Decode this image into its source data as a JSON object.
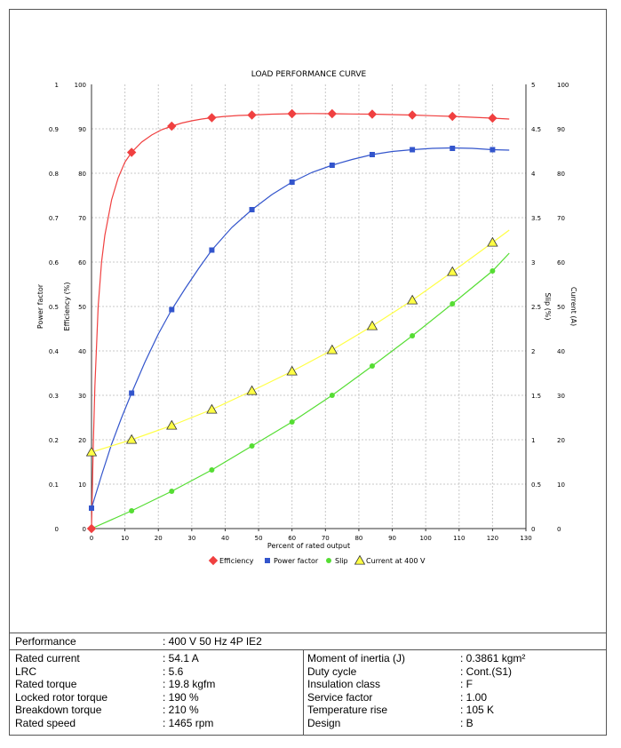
{
  "chart_data": {
    "type": "line",
    "title": "LOAD PERFORMANCE CURVE",
    "xlabel": "Percent of rated output",
    "xlim": [
      0,
      130
    ],
    "x_ticks": [
      "0",
      "10",
      "20",
      "30",
      "40",
      "50",
      "60",
      "70",
      "80",
      "90",
      "100",
      "110",
      "120",
      "130"
    ],
    "grid": true,
    "legend_position": "bottom",
    "axes": {
      "power_factor": {
        "label": "Power factor",
        "ticks": [
          "0",
          "0.1",
          "0.2",
          "0.3",
          "0.4",
          "0.5",
          "0.6",
          "0.7",
          "0.8",
          "0.9",
          "1"
        ],
        "range": [
          0,
          1
        ]
      },
      "efficiency": {
        "label": "Efficiency (%)",
        "ticks": [
          "0",
          "10",
          "20",
          "30",
          "40",
          "50",
          "60",
          "70",
          "80",
          "90",
          "100"
        ],
        "range": [
          0,
          100
        ]
      },
      "slip": {
        "label": "Slip (%)",
        "ticks": [
          "0",
          "0.5",
          "1",
          "1.5",
          "2",
          "2.5",
          "3",
          "3.5",
          "4",
          "4.5",
          "5"
        ],
        "range": [
          0,
          5
        ]
      },
      "current": {
        "label": "Current (A)",
        "ticks": [
          "0",
          "10",
          "20",
          "30",
          "40",
          "50",
          "60",
          "70",
          "80",
          "90",
          "100"
        ],
        "range": [
          0,
          100
        ]
      }
    },
    "series": [
      {
        "name": "Efficiency",
        "axis": "efficiency",
        "color": "#f04040",
        "marker": "diamond",
        "points": {
          "x": [
            0,
            12,
            24,
            36,
            48,
            60,
            72,
            84,
            96,
            108,
            120
          ],
          "y": [
            0,
            84.7,
            90.6,
            92.5,
            93.1,
            93.4,
            93.4,
            93.3,
            93.1,
            92.8,
            92.4
          ]
        },
        "curve": {
          "x": [
            0,
            0.5,
            1,
            2,
            3,
            4,
            6,
            8,
            10,
            12,
            15,
            18,
            21,
            24,
            27,
            30,
            33,
            36,
            40,
            44,
            48,
            54,
            60,
            66,
            72,
            78,
            84,
            90,
            96,
            102,
            108,
            114,
            120,
            125
          ],
          "y": [
            0,
            18,
            32,
            50,
            60,
            66,
            74,
            79,
            82.5,
            84.7,
            87,
            88.6,
            89.8,
            90.6,
            91.3,
            91.8,
            92.2,
            92.5,
            92.8,
            93.0,
            93.1,
            93.3,
            93.4,
            93.45,
            93.4,
            93.35,
            93.3,
            93.2,
            93.1,
            92.95,
            92.8,
            92.6,
            92.4,
            92.2
          ]
        }
      },
      {
        "name": "Power factor",
        "axis": "power_factor",
        "color": "#3355cc",
        "marker": "square",
        "points": {
          "x": [
            0,
            12,
            24,
            36,
            48,
            60,
            72,
            84,
            96,
            108,
            120
          ],
          "y": [
            0.046,
            0.305,
            0.493,
            0.627,
            0.718,
            0.78,
            0.818,
            0.842,
            0.853,
            0.856,
            0.853
          ]
        },
        "curve": {
          "x": [
            0,
            3,
            6,
            9,
            12,
            16,
            20,
            24,
            28,
            32,
            36,
            42,
            48,
            54,
            60,
            66,
            72,
            78,
            84,
            90,
            96,
            102,
            108,
            114,
            120,
            125
          ],
          "y": [
            0.046,
            0.12,
            0.19,
            0.25,
            0.305,
            0.375,
            0.438,
            0.493,
            0.54,
            0.585,
            0.627,
            0.678,
            0.718,
            0.752,
            0.78,
            0.802,
            0.818,
            0.831,
            0.842,
            0.849,
            0.853,
            0.856,
            0.857,
            0.856,
            0.853,
            0.852
          ]
        }
      },
      {
        "name": "Slip",
        "axis": "slip",
        "color": "#55dd33",
        "marker": "circle",
        "points": {
          "x": [
            12,
            24,
            36,
            48,
            60,
            72,
            84,
            96,
            108,
            120
          ],
          "y": [
            0.2,
            0.42,
            0.66,
            0.93,
            1.2,
            1.5,
            1.83,
            2.17,
            2.53,
            2.9
          ]
        },
        "curve": {
          "x": [
            0,
            12,
            24,
            36,
            48,
            60,
            72,
            84,
            96,
            108,
            120,
            125
          ],
          "y": [
            0,
            0.2,
            0.42,
            0.66,
            0.93,
            1.2,
            1.5,
            1.83,
            2.17,
            2.53,
            2.9,
            3.1
          ]
        }
      },
      {
        "name": "Current at 400 V",
        "axis": "current",
        "color": "#ffff44",
        "marker": "triangle",
        "points": {
          "x": [
            0,
            12,
            24,
            36,
            48,
            60,
            72,
            84,
            96,
            108,
            120
          ],
          "y": [
            17.2,
            20,
            23.2,
            26.8,
            31,
            35.4,
            40.2,
            45.6,
            51.4,
            57.8,
            64.4
          ]
        },
        "curve": {
          "x": [
            0,
            12,
            24,
            36,
            48,
            60,
            72,
            84,
            96,
            108,
            120,
            125
          ],
          "y": [
            17.2,
            20,
            23.2,
            26.8,
            31,
            35.4,
            40.2,
            45.6,
            51.4,
            57.8,
            64.4,
            67.2
          ]
        }
      }
    ]
  },
  "specs": {
    "performance_label": "Performance",
    "performance_value": ": 400 V 50 Hz 4P IE2",
    "left_rows": [
      {
        "label": "Rated current",
        "value": ": 54.1 A"
      },
      {
        "label": "LRC",
        "value": ": 5.6"
      },
      {
        "label": "Rated torque",
        "value": ": 19.8 kgfm"
      },
      {
        "label": "Locked rotor torque",
        "value": ": 190 %"
      },
      {
        "label": "Breakdown torque",
        "value": ": 210 %"
      },
      {
        "label": "Rated speed",
        "value": ": 1465 rpm"
      }
    ],
    "right_rows": [
      {
        "label": "Moment of inertia (J)",
        "value": ": 0.3861 kgm²"
      },
      {
        "label": "Duty cycle",
        "value": ": Cont.(S1)"
      },
      {
        "label": "Insulation class",
        "value": ": F"
      },
      {
        "label": "Service factor",
        "value": ": 1.00"
      },
      {
        "label": "Temperature rise",
        "value": ": 105 K"
      },
      {
        "label": "Design",
        "value": ": B"
      }
    ]
  }
}
